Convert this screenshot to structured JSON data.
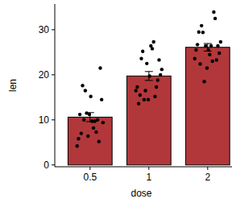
{
  "chart_data": {
    "type": "bar",
    "x_label": "dose",
    "y_label": "len",
    "categories": [
      "0.5",
      "1",
      "2"
    ],
    "values": [
      10.605,
      19.735,
      26.1
    ],
    "errors": [
      1.0,
      0.99,
      0.84
    ],
    "points": [
      [
        4.2,
        11.5,
        7.3,
        5.8,
        6.4,
        10,
        11.2,
        11.2,
        5.2,
        7,
        15.2,
        21.5,
        17.6,
        9.7,
        14.5,
        10,
        8.2,
        9.4,
        16.5,
        9.7
      ],
      [
        16.5,
        16.5,
        15.2,
        17.3,
        22.5,
        17.3,
        13.6,
        14.5,
        18.8,
        15.5,
        19.7,
        23.3,
        23.6,
        26.4,
        20,
        25.2,
        25.8,
        21.2,
        14.5,
        27.3
      ],
      [
        23.6,
        18.5,
        33.9,
        25.5,
        26.4,
        32.5,
        26.7,
        21.5,
        23.3,
        29.5,
        25.5,
        26.4,
        22.4,
        24.5,
        24.8,
        30.9,
        26.4,
        27.3,
        29.4,
        23
      ]
    ],
    "color": "#b2373a",
    "ylim": [
      -0.4,
      35.7
    ],
    "yticks": [
      0,
      10,
      20,
      30
    ]
  }
}
